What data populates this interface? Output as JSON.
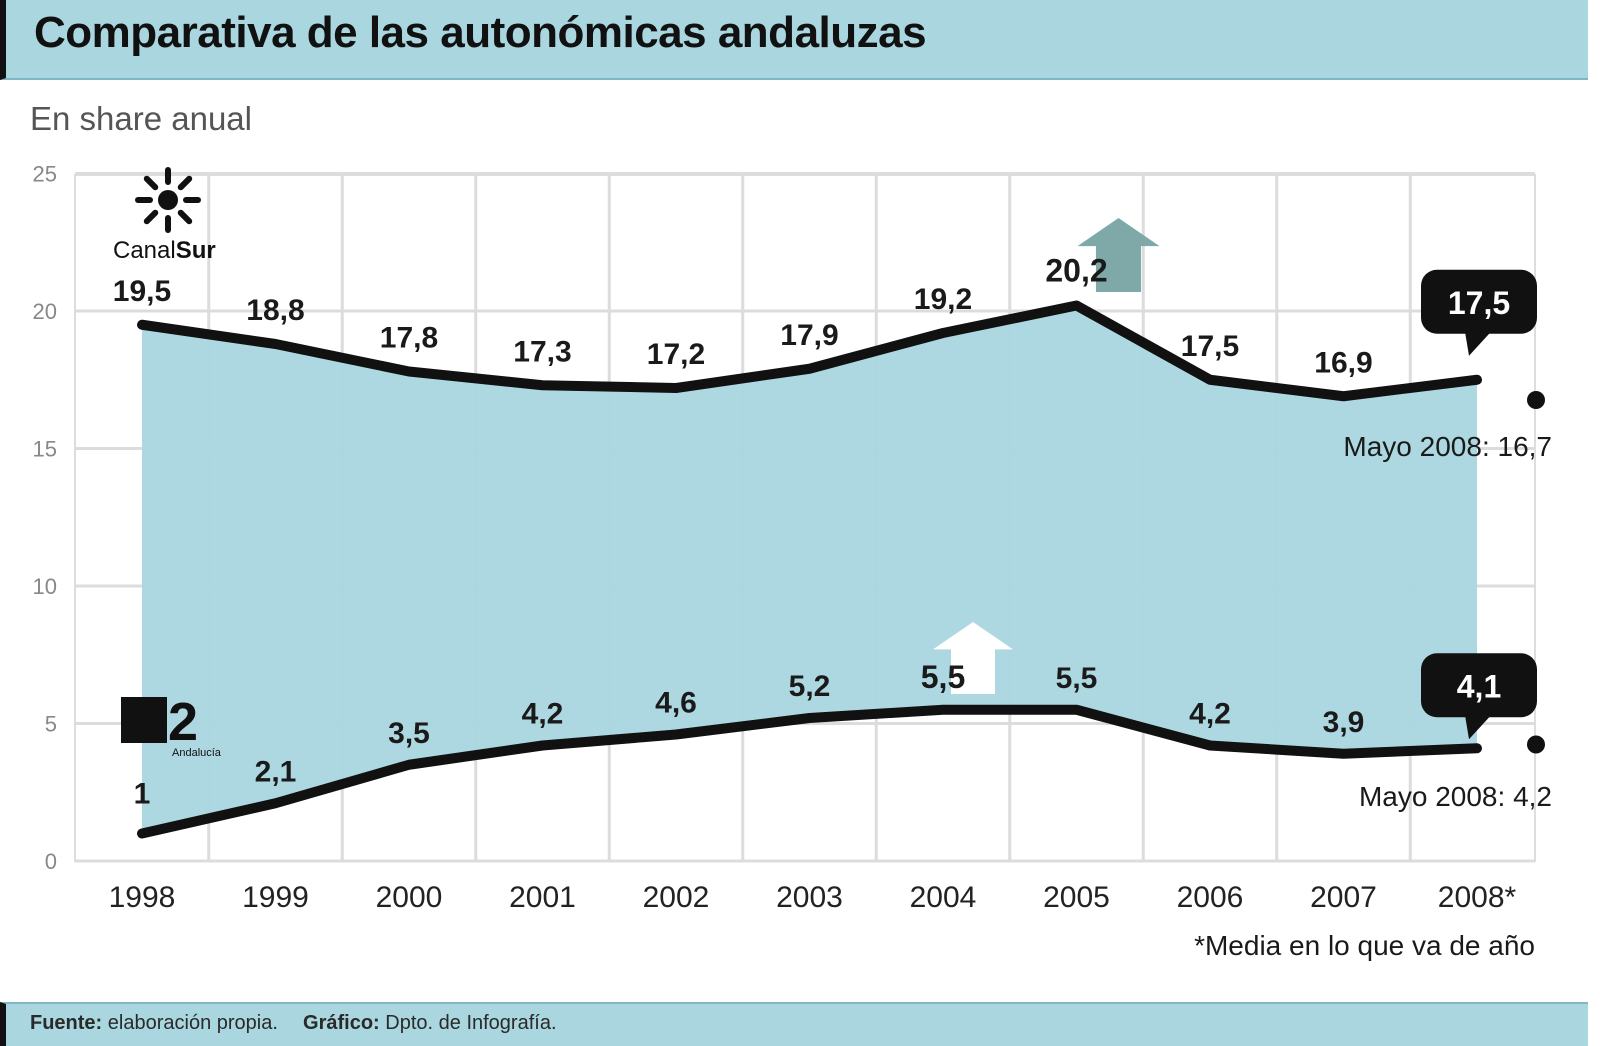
{
  "title": "Comparativa de las autonómicas andaluzas",
  "subtitle": "En share anual",
  "footer": {
    "source_label": "Fuente:",
    "source_value": "elaboración propia.",
    "graphic_label": "Gráfico:",
    "graphic_value": "Dpto. de Infografía."
  },
  "footnote": "*Media en lo que va de año",
  "logos": {
    "canal_sur": {
      "prefix": "Canal",
      "suffix": "Sur"
    },
    "canal2": {
      "number": "2",
      "caption": "Andalucía"
    }
  },
  "colors": {
    "header_band": "#a9d6df",
    "fill_between": "#a9d6df",
    "line": "#111111",
    "arrow": "#7fa9a9"
  },
  "chart_data": {
    "type": "line",
    "x": [
      "1998",
      "1999",
      "2000",
      "2001",
      "2002",
      "2003",
      "2004",
      "2005",
      "2006",
      "2007",
      "2008*"
    ],
    "ylim": [
      0,
      25
    ],
    "yticks": [
      0,
      5,
      10,
      15,
      20,
      25
    ],
    "grid": true,
    "fill_between_series": true,
    "series": [
      {
        "key": "canal_sur",
        "values": [
          19.5,
          18.8,
          17.8,
          17.3,
          17.2,
          17.9,
          19.2,
          20.2,
          17.5,
          16.9,
          17.5
        ],
        "labels": [
          "19,5",
          "18,8",
          "17,8",
          "17,3",
          "17,2",
          "17,9",
          "19,2",
          "20,2",
          "17,5",
          "16,9",
          "17,5"
        ],
        "highlight_index": 7,
        "may_2008": {
          "value": 16.7,
          "label": "Mayo 2008: 16,7"
        }
      },
      {
        "key": "canal_2",
        "values": [
          1,
          2.1,
          3.5,
          4.2,
          4.6,
          5.2,
          5.5,
          5.5,
          4.2,
          3.9,
          4.1
        ],
        "labels": [
          "1",
          "2,1",
          "3,5",
          "4,2",
          "4,6",
          "5,2",
          "5,5",
          "5,5",
          "4,2",
          "3,9",
          "4,1"
        ],
        "highlight_index": 6,
        "may_2008": {
          "value": 4.2,
          "label": "Mayo 2008: 4,2"
        }
      }
    ]
  }
}
